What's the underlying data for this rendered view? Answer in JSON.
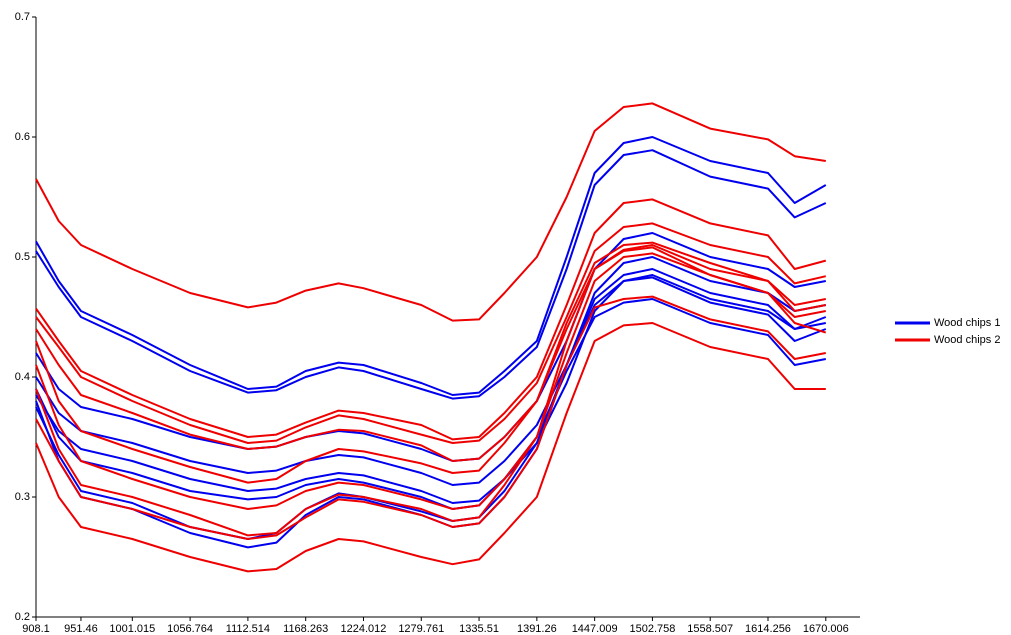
{
  "chart_data": {
    "type": "multiline",
    "x": [
      908.1,
      930,
      951.46,
      1001.015,
      1056.764,
      1112.514,
      1140,
      1168.263,
      1200,
      1224.012,
      1279.761,
      1310,
      1335.51,
      1360,
      1391.26,
      1420,
      1447.009,
      1475,
      1502.758,
      1558.507,
      1614.256,
      1640,
      1670.006
    ],
    "xlim": [
      908.1,
      1703
    ],
    "xticks": [
      908.1,
      951.46,
      1001.015,
      1056.764,
      1112.514,
      1168.263,
      1224.012,
      1279.761,
      1335.51,
      1391.26,
      1447.009,
      1502.758,
      1558.507,
      1614.256,
      1670.006
    ],
    "ylim": [
      0.2,
      0.7
    ],
    "yticks": [
      0.2,
      0.3,
      0.4,
      0.5,
      0.6,
      0.7
    ],
    "legend": "right",
    "series": [
      {
        "name": "Wood chips 1",
        "color": "#0000ee",
        "lines": [
          [
            0.513,
            0.48,
            0.455,
            0.435,
            0.41,
            0.39,
            0.392,
            0.405,
            0.412,
            0.41,
            0.395,
            0.385,
            0.387,
            0.405,
            0.43,
            0.5,
            0.57,
            0.595,
            0.6,
            0.58,
            0.57,
            0.545,
            0.56
          ],
          [
            0.505,
            0.475,
            0.45,
            0.43,
            0.405,
            0.387,
            0.389,
            0.4,
            0.408,
            0.405,
            0.39,
            0.382,
            0.384,
            0.4,
            0.425,
            0.49,
            0.56,
            0.585,
            0.589,
            0.567,
            0.557,
            0.533,
            0.545
          ],
          [
            0.42,
            0.39,
            0.375,
            0.365,
            0.35,
            0.34,
            0.342,
            0.35,
            0.355,
            0.353,
            0.34,
            0.33,
            0.332,
            0.35,
            0.38,
            0.43,
            0.49,
            0.515,
            0.52,
            0.5,
            0.49,
            0.475,
            0.48
          ],
          [
            0.4,
            0.37,
            0.355,
            0.345,
            0.33,
            0.32,
            0.322,
            0.33,
            0.335,
            0.333,
            0.32,
            0.31,
            0.312,
            0.33,
            0.36,
            0.41,
            0.47,
            0.495,
            0.5,
            0.48,
            0.47,
            0.455,
            0.46
          ],
          [
            0.385,
            0.355,
            0.34,
            0.33,
            0.315,
            0.305,
            0.307,
            0.315,
            0.32,
            0.318,
            0.305,
            0.295,
            0.297,
            0.315,
            0.345,
            0.395,
            0.455,
            0.48,
            0.485,
            0.465,
            0.455,
            0.44,
            0.445
          ],
          [
            0.38,
            0.33,
            0.3,
            0.29,
            0.27,
            0.258,
            0.262,
            0.285,
            0.3,
            0.298,
            0.285,
            0.275,
            0.278,
            0.3,
            0.34,
            0.41,
            0.465,
            0.485,
            0.49,
            0.47,
            0.46,
            0.44,
            0.45
          ],
          [
            0.375,
            0.335,
            0.305,
            0.295,
            0.275,
            0.265,
            0.27,
            0.29,
            0.303,
            0.3,
            0.288,
            0.28,
            0.283,
            0.305,
            0.345,
            0.41,
            0.46,
            0.48,
            0.483,
            0.462,
            0.452,
            0.43,
            0.44
          ],
          [
            0.39,
            0.35,
            0.33,
            0.32,
            0.305,
            0.298,
            0.3,
            0.31,
            0.315,
            0.312,
            0.3,
            0.29,
            0.293,
            0.315,
            0.35,
            0.405,
            0.45,
            0.462,
            0.465,
            0.445,
            0.435,
            0.41,
            0.415
          ]
        ]
      },
      {
        "name": "Wood chips 2",
        "color": "#ee0000",
        "lines": [
          [
            0.565,
            0.53,
            0.51,
            0.49,
            0.47,
            0.458,
            0.462,
            0.472,
            0.478,
            0.474,
            0.46,
            0.447,
            0.448,
            0.47,
            0.5,
            0.55,
            0.605,
            0.625,
            0.628,
            0.607,
            0.598,
            0.584,
            0.58
          ],
          [
            0.457,
            0.43,
            0.405,
            0.385,
            0.365,
            0.35,
            0.352,
            0.362,
            0.372,
            0.37,
            0.36,
            0.348,
            0.35,
            0.37,
            0.4,
            0.46,
            0.52,
            0.545,
            0.548,
            0.528,
            0.518,
            0.49,
            0.497
          ],
          [
            0.45,
            0.425,
            0.4,
            0.38,
            0.36,
            0.345,
            0.347,
            0.358,
            0.368,
            0.365,
            0.352,
            0.345,
            0.347,
            0.365,
            0.395,
            0.45,
            0.505,
            0.525,
            0.528,
            0.51,
            0.5,
            0.478,
            0.484
          ],
          [
            0.44,
            0.41,
            0.385,
            0.37,
            0.352,
            0.34,
            0.342,
            0.35,
            0.356,
            0.355,
            0.343,
            0.33,
            0.332,
            0.35,
            0.38,
            0.44,
            0.49,
            0.506,
            0.51,
            0.49,
            0.48,
            0.46,
            0.465
          ],
          [
            0.43,
            0.38,
            0.355,
            0.34,
            0.325,
            0.312,
            0.315,
            0.33,
            0.34,
            0.338,
            0.328,
            0.32,
            0.322,
            0.345,
            0.38,
            0.445,
            0.495,
            0.51,
            0.512,
            0.495,
            0.48,
            0.455,
            0.46
          ],
          [
            0.41,
            0.36,
            0.33,
            0.315,
            0.3,
            0.29,
            0.293,
            0.305,
            0.312,
            0.31,
            0.298,
            0.29,
            0.293,
            0.315,
            0.35,
            0.42,
            0.48,
            0.5,
            0.503,
            0.485,
            0.47,
            0.45,
            0.455
          ],
          [
            0.39,
            0.34,
            0.31,
            0.3,
            0.285,
            0.268,
            0.27,
            0.29,
            0.302,
            0.3,
            0.29,
            0.28,
            0.283,
            0.31,
            0.35,
            0.43,
            0.49,
            0.505,
            0.508,
            0.485,
            0.47,
            0.445,
            0.437
          ],
          [
            0.365,
            0.33,
            0.3,
            0.29,
            0.275,
            0.265,
            0.268,
            0.283,
            0.298,
            0.296,
            0.285,
            0.275,
            0.278,
            0.3,
            0.34,
            0.41,
            0.458,
            0.465,
            0.467,
            0.448,
            0.438,
            0.415,
            0.42
          ],
          [
            0.345,
            0.3,
            0.275,
            0.265,
            0.25,
            0.238,
            0.24,
            0.255,
            0.265,
            0.263,
            0.25,
            0.244,
            0.248,
            0.27,
            0.3,
            0.37,
            0.43,
            0.443,
            0.445,
            0.425,
            0.415,
            0.39,
            0.39
          ]
        ]
      }
    ]
  }
}
